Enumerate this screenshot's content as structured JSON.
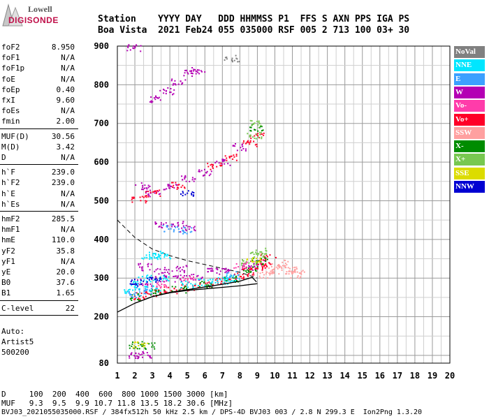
{
  "logo": {
    "line1": "Lowell",
    "line2": "DIGISONDE"
  },
  "header": {
    "line1": "Station    YYYY DAY   DDD HHMMSS P1  FFS S AXN PPS IGA PS",
    "line2": "Boa Vista  2021 Feb24 055 035000 RSF 005 2 713 100 03+ 30"
  },
  "params": {
    "groups": [
      [
        {
          "name": "foF2",
          "value": "8.950"
        },
        {
          "name": "foF1",
          "value": "N/A"
        },
        {
          "name": "foF1p",
          "value": "N/A"
        },
        {
          "name": "foE",
          "value": "N/A"
        },
        {
          "name": "foEp",
          "value": "0.40"
        },
        {
          "name": "fxI",
          "value": "9.60"
        },
        {
          "name": "foEs",
          "value": "N/A"
        },
        {
          "name": "fmin",
          "value": "2.00"
        }
      ],
      [
        {
          "name": "MUF(D)",
          "value": "30.56"
        },
        {
          "name": "M(D)",
          "value": "3.42"
        },
        {
          "name": "D",
          "value": "N/A"
        }
      ],
      [
        {
          "name": "h`F",
          "value": "239.0"
        },
        {
          "name": "h`F2",
          "value": "239.0"
        },
        {
          "name": "h`E",
          "value": "N/A"
        },
        {
          "name": "h`Es",
          "value": "N/A"
        }
      ],
      [
        {
          "name": "hmF2",
          "value": "285.5"
        },
        {
          "name": "hmF1",
          "value": "N/A"
        },
        {
          "name": "hmE",
          "value": "110.0"
        },
        {
          "name": "yF2",
          "value": "35.8"
        },
        {
          "name": "yF1",
          "value": "N/A"
        },
        {
          "name": "yE",
          "value": "20.0"
        },
        {
          "name": "B0",
          "value": "37.6"
        },
        {
          "name": "B1",
          "value": "1.65"
        }
      ],
      [
        {
          "name": "C-level",
          "value": "22"
        }
      ]
    ],
    "auto_label": "Auto:",
    "auto_name": "Artist5",
    "auto_code": "500200"
  },
  "legend": [
    {
      "label": "NoVal",
      "color": "#808080"
    },
    {
      "label": "NNE",
      "color": "#00e6ff"
    },
    {
      "label": "E",
      "color": "#3ca0ff"
    },
    {
      "label": "W",
      "color": "#b400b4"
    },
    {
      "label": "Vo-",
      "color": "#ff3caa"
    },
    {
      "label": "Vo+",
      "color": "#ff0028"
    },
    {
      "label": "SSW",
      "color": "#ffa0a0"
    },
    {
      "label": "X-",
      "color": "#008c00"
    },
    {
      "label": "X+",
      "color": "#78c850"
    },
    {
      "label": "SSE",
      "color": "#dcdc00"
    },
    {
      "label": "NNW",
      "color": "#0000d2"
    }
  ],
  "footer": {
    "d_line": "D     100  200  400  600  800 1000 1500 3000 [km]",
    "muf_line": "MUF   9.3  9.5  9.9 10.7 11.8 13.5 18.2 30.6 [MHz]",
    "file_line": "BVJ03_2021055035000.RSF / 384fx512h 50 kHz 2.5 km / DPS-4D BVJ03 003 / 2.8 N 299.3 E  Ion2Png 1.3.20"
  },
  "chart_data": {
    "type": "scatter",
    "xlim": [
      1,
      20
    ],
    "ylim": [
      80,
      900
    ],
    "xticks": [
      1,
      2,
      3,
      4,
      5,
      6,
      7,
      8,
      9,
      10,
      11,
      12,
      13,
      14,
      15,
      16,
      17,
      18,
      19,
      20
    ],
    "yticks": [
      80,
      200,
      300,
      400,
      500,
      600,
      700,
      800,
      900
    ],
    "grid": true,
    "x_minor_step": 0.5,
    "y_minor_step": 50,
    "legend_position": "right",
    "series": [
      {
        "name": "W",
        "color": "#b400b4",
        "points": [
          [
            1.9,
            897
          ],
          [
            3.2,
            765
          ],
          [
            3.8,
            785
          ],
          [
            4.5,
            810
          ],
          [
            5.2,
            830
          ],
          [
            5.6,
            838
          ],
          [
            2.4,
            540
          ],
          [
            3.0,
            520
          ],
          [
            4.0,
            535
          ],
          [
            5.0,
            560
          ],
          [
            6.0,
            575
          ],
          [
            7.0,
            600
          ],
          [
            8.0,
            640
          ],
          [
            3.5,
            440
          ],
          [
            4.5,
            440
          ],
          [
            5.0,
            430
          ],
          [
            2.6,
            330
          ],
          [
            3.5,
            320
          ],
          [
            4.5,
            325
          ],
          [
            6.5,
            320
          ],
          [
            2.5,
            290
          ],
          [
            3.5,
            300
          ],
          [
            4.5,
            300
          ],
          [
            5.5,
            305
          ],
          [
            7.0,
            320
          ],
          [
            8.5,
            330
          ],
          [
            9.0,
            340
          ],
          [
            2.0,
            102
          ],
          [
            2.5,
            102
          ]
        ]
      },
      {
        "name": "Vo+",
        "color": "#ff0028",
        "points": [
          [
            2.2,
            255
          ],
          [
            3.0,
            262
          ],
          [
            4.0,
            270
          ],
          [
            5.0,
            276
          ],
          [
            6.0,
            284
          ],
          [
            7.0,
            294
          ],
          [
            8.0,
            306
          ],
          [
            8.5,
            318
          ],
          [
            9.0,
            330
          ],
          [
            9.3,
            340
          ],
          [
            9.6,
            355
          ],
          [
            2.2,
            505
          ],
          [
            3.0,
            520
          ],
          [
            4.5,
            540
          ],
          [
            6.5,
            590
          ],
          [
            7.5,
            615
          ],
          [
            8.5,
            650
          ],
          [
            8.9,
            670
          ]
        ]
      },
      {
        "name": "X-",
        "color": "#008c00",
        "points": [
          [
            2.1,
            252
          ],
          [
            3.2,
            262
          ],
          [
            4.5,
            272
          ],
          [
            6.0,
            284
          ],
          [
            7.5,
            300
          ],
          [
            8.6,
            322
          ],
          [
            9.1,
            345
          ],
          [
            8.9,
            690
          ],
          [
            2.0,
            128
          ],
          [
            2.8,
            126
          ]
        ]
      },
      {
        "name": "X+",
        "color": "#78c850",
        "points": [
          [
            8.8,
            670
          ],
          [
            8.9,
            700
          ],
          [
            9.0,
            360
          ],
          [
            9.2,
            370
          ],
          [
            8.5,
            340
          ]
        ]
      },
      {
        "name": "NNE",
        "color": "#00e6ff",
        "points": [
          [
            1.8,
            270
          ],
          [
            2.2,
            285
          ],
          [
            2.6,
            300
          ],
          [
            3.0,
            275
          ],
          [
            3.5,
            300
          ],
          [
            5.0,
            285
          ],
          [
            6.0,
            290
          ],
          [
            7.0,
            295
          ],
          [
            7.5,
            300
          ],
          [
            2.8,
            360
          ],
          [
            3.3,
            362
          ],
          [
            3.6,
            358
          ]
        ]
      },
      {
        "name": "E",
        "color": "#3ca0ff",
        "points": [
          [
            2.0,
            260
          ],
          [
            2.5,
            270
          ],
          [
            4.0,
            430
          ],
          [
            4.8,
            425
          ],
          [
            7.5,
            310
          ]
        ]
      },
      {
        "name": "SSW",
        "color": "#ffa0a0",
        "points": [
          [
            9.4,
            310
          ],
          [
            9.8,
            320
          ],
          [
            10.2,
            330
          ],
          [
            10.5,
            340
          ],
          [
            10.8,
            325
          ],
          [
            11.0,
            310
          ],
          [
            11.3,
            320
          ]
        ]
      },
      {
        "name": "SSE",
        "color": "#dcdc00",
        "points": [
          [
            2.3,
            128
          ],
          [
            8.8,
            350
          ]
        ]
      },
      {
        "name": "NNW",
        "color": "#0000d2",
        "points": [
          [
            2.1,
            290
          ],
          [
            3.0,
            295
          ],
          [
            5.0,
            520
          ]
        ]
      },
      {
        "name": "Vo-",
        "color": "#ff3caa",
        "points": [
          [
            3.5,
            285
          ],
          [
            5.0,
            300
          ],
          [
            8.0,
            335
          ]
        ]
      },
      {
        "name": "NoVal",
        "color": "#808080",
        "points": [
          [
            7.5,
            870
          ]
        ]
      }
    ],
    "profile_line": {
      "color": "#000000",
      "points": [
        [
          1.0,
          212
        ],
        [
          2.0,
          235
        ],
        [
          3.0,
          252
        ],
        [
          4.0,
          262
        ],
        [
          5.0,
          268
        ],
        [
          6.0,
          272
        ],
        [
          7.0,
          276
        ],
        [
          8.0,
          280
        ],
        [
          8.7,
          284
        ],
        [
          9.0,
          285.5
        ]
      ]
    },
    "trace_line": {
      "color": "#000000",
      "points": [
        [
          2.0,
          235
        ],
        [
          3.0,
          252
        ],
        [
          4.0,
          263
        ],
        [
          5.0,
          270
        ],
        [
          6.0,
          277
        ],
        [
          7.0,
          284
        ],
        [
          8.0,
          292
        ],
        [
          8.7,
          302
        ],
        [
          8.95,
          290
        ]
      ]
    },
    "muf_curve": {
      "color": "#000000",
      "style": "dashed",
      "points": [
        [
          1.0,
          450
        ],
        [
          2.0,
          405
        ],
        [
          3.0,
          375
        ],
        [
          4.0,
          358
        ],
        [
          5.0,
          345
        ],
        [
          6.0,
          335
        ],
        [
          7.0,
          325
        ],
        [
          8.0,
          315
        ],
        [
          9.0,
          300
        ]
      ]
    }
  }
}
